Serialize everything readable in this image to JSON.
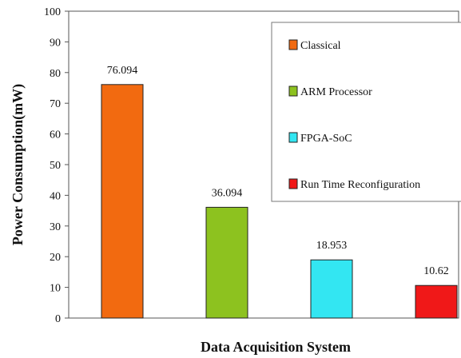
{
  "chart_data": {
    "type": "bar",
    "categories": [
      "Classical",
      "ARM Processor",
      "FPGA-SoC",
      "Run Time Reconfiguration"
    ],
    "values": [
      76.094,
      36.094,
      18.953,
      10.62
    ],
    "data_labels": [
      "76.094",
      "36.094",
      "18.953",
      "10.62"
    ],
    "colors": [
      "#F26A10",
      "#8DC21F",
      "#33E6F2",
      "#F01818"
    ],
    "xlabel": "Data Acquisition System",
    "ylabel": "Power Consumption(mW)",
    "ylim": [
      0,
      100
    ],
    "yticks": [
      "0",
      "10",
      "20",
      "30",
      "40",
      "50",
      "60",
      "70",
      "80",
      "90",
      "100"
    ],
    "grid": false,
    "legend": {
      "placement": "top-right",
      "entries": [
        "Classical",
        "ARM Processor",
        "FPGA-SoC",
        "Run Time Reconfiguration"
      ]
    }
  }
}
